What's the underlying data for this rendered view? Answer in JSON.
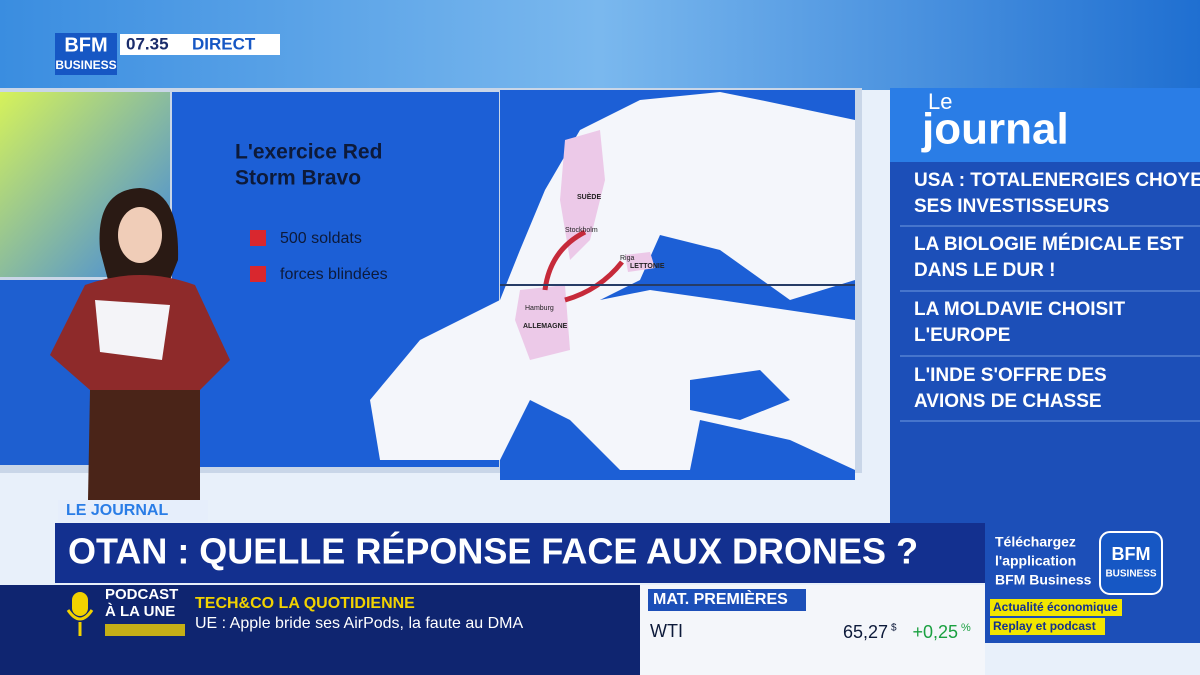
{
  "header": {
    "logo": "BFM",
    "logo_sub": "BUSINESS",
    "time": "07.35",
    "status": "DIRECT"
  },
  "map": {
    "title_lines": [
      "L'exercice Red",
      "Storm Bravo"
    ],
    "legend": [
      "500 soldats",
      "forces blindées"
    ],
    "labels": [
      "SUÈDE",
      "Stockholm",
      "Riga",
      "LETTONIE",
      "Hamburg",
      "ALLEMAGNE"
    ]
  },
  "sidebar": {
    "title_small": "Le",
    "title": "journal",
    "headlines": [
      [
        "USA : TOTALENERGIES CHOYE",
        "SES INVESTISSEURS"
      ],
      [
        "LA BIOLOGIE MÉDICALE EST",
        "DANS LE DUR !"
      ],
      [
        "LA MOLDAVIE CHOISIT",
        "L'EUROPE"
      ],
      [
        "L'INDE S'OFFRE DES",
        "AVIONS DE CHASSE"
      ]
    ]
  },
  "lower_third": {
    "tag": "LE JOURNAL",
    "headline": "OTAN : QUELLE RÉPONSE FACE AUX DRONES ?"
  },
  "promo": {
    "lines": [
      "Téléchargez",
      "l'application",
      "BFM Business"
    ],
    "logo": "BFM",
    "logo_sub": "BUSINESS",
    "tags": [
      "Actualité économique",
      "Replay et podcast"
    ]
  },
  "ticker": {
    "podcast": [
      "PODCAST",
      "À LA UNE"
    ],
    "show": "TECH&CO LA QUOTIDIENNE",
    "story": "UE : Apple bride ses AirPods, la faute au DMA",
    "market_title": "MAT. PREMIÈRES",
    "asset": "WTI",
    "price": "65,27",
    "currency": "$",
    "change": "+0,25",
    "change_unit": "%"
  }
}
